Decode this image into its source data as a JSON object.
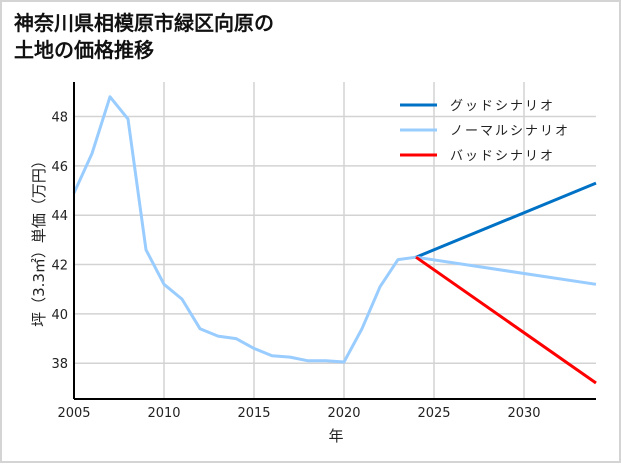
{
  "title_line1": "神奈川県相模原市緑区向原の",
  "title_line2": "土地の価格推移",
  "chart_data": {
    "type": "line",
    "title": "神奈川県相模原市緑区向原の土地の価格推移",
    "xlabel": "年",
    "ylabel": "坪（3.3㎡）単価（万円）",
    "xlim": [
      2005,
      2034
    ],
    "ylim": [
      36.55,
      49.4
    ],
    "xticks": [
      2005,
      2010,
      2015,
      2020,
      2025,
      2030
    ],
    "yticks": [
      38,
      40,
      42,
      44,
      46,
      48
    ],
    "grid": true,
    "legend_position": "upper right",
    "series": [
      {
        "name": "ノーマルシナリオ",
        "color": "#99ccff",
        "x": [
          2005,
          2006,
          2007,
          2008,
          2009,
          2010,
          2011,
          2012,
          2013,
          2014,
          2015,
          2016,
          2017,
          2018,
          2019,
          2020,
          2021,
          2022,
          2023,
          2024
        ],
        "values": [
          44.9,
          46.5,
          48.8,
          47.9,
          42.6,
          41.2,
          40.6,
          39.4,
          39.1,
          39.0,
          38.6,
          38.3,
          38.25,
          38.1,
          38.1,
          38.05,
          39.4,
          41.1,
          42.2,
          42.3
        ]
      },
      {
        "name": "グッドシナリオ",
        "color": "#0072c6",
        "x": [
          2024,
          2034
        ],
        "values": [
          42.3,
          45.3
        ]
      },
      {
        "name": "ノーマルシナリオ",
        "color": "#99ccff",
        "x": [
          2024,
          2034
        ],
        "values": [
          42.3,
          41.2
        ]
      },
      {
        "name": "バッドシナリオ",
        "color": "#ff0000",
        "x": [
          2024,
          2034
        ],
        "values": [
          42.3,
          37.2
        ]
      }
    ]
  },
  "legend": [
    {
      "label": "グッドシナリオ",
      "color": "#0072c6"
    },
    {
      "label": "ノーマルシナリオ",
      "color": "#99ccff"
    },
    {
      "label": "バッドシナリオ",
      "color": "#ff0000"
    }
  ]
}
